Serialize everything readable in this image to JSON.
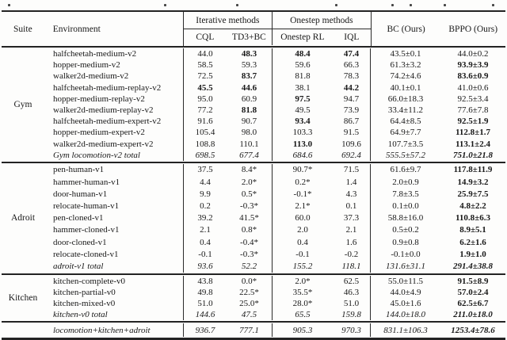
{
  "table": {
    "header": {
      "suite": "Suite",
      "environment": "Environment",
      "group_iterative": "Iterative methods",
      "group_onestep": "Onestep methods",
      "col_cql": "CQL",
      "col_td3bc": "TD3+BC",
      "col_onestep_rl": "Onestep RL",
      "col_iql": "IQL",
      "col_bc": "BC (Ours)",
      "col_bppo": "BPPO (Ours)"
    },
    "colors": {
      "text": "#181818",
      "rule": "#232323",
      "background": "#fdfdfc"
    },
    "sections": [
      {
        "suite": "Gym",
        "rows": [
          {
            "env": "halfcheetah-medium-v2",
            "cql": "44.0",
            "td3bc": "48.3",
            "onestep": "48.4",
            "iql": "47.4",
            "bc": "43.5±0.1",
            "bppo": "44.0±0.2",
            "b": [
              "td3bc",
              "onestep",
              "iql"
            ]
          },
          {
            "env": "hopper-medium-v2",
            "cql": "58.5",
            "td3bc": "59.3",
            "onestep": "59.6",
            "iql": "66.3",
            "bc": "61.3±3.2",
            "bppo": "93.9±3.9",
            "b": [
              "bppo"
            ]
          },
          {
            "env": "walker2d-medium-v2",
            "cql": "72.5",
            "td3bc": "83.7",
            "onestep": "81.8",
            "iql": "78.3",
            "bc": "74.2±4.6",
            "bppo": "83.6±0.9",
            "b": [
              "td3bc",
              "bppo"
            ]
          },
          {
            "env": "halfcheetah-medium-replay-v2",
            "cql": "45.5",
            "td3bc": "44.6",
            "onestep": "38.1",
            "iql": "44.2",
            "bc": "40.1±0.1",
            "bppo": "41.0±0.6",
            "b": [
              "cql",
              "td3bc",
              "iql"
            ]
          },
          {
            "env": "hopper-medium-replay-v2",
            "cql": "95.0",
            "td3bc": "60.9",
            "onestep": "97.5",
            "iql": "94.7",
            "bc": "66.0±18.3",
            "bppo": "92.5±3.4",
            "b": [
              "onestep"
            ]
          },
          {
            "env": "walker2d-medium-replay-v2",
            "cql": "77.2",
            "td3bc": "81.8",
            "onestep": "49.5",
            "iql": "73.9",
            "bc": "33.4±11.2",
            "bppo": "77.6±7.8",
            "b": [
              "td3bc"
            ]
          },
          {
            "env": "halfcheetah-medium-expert-v2",
            "cql": "91.6",
            "td3bc": "90.7",
            "onestep": "93.4",
            "iql": "86.7",
            "bc": "64.4±8.5",
            "bppo": "92.5±1.9",
            "b": [
              "onestep",
              "bppo"
            ]
          },
          {
            "env": "hopper-medium-expert-v2",
            "cql": "105.4",
            "td3bc": "98.0",
            "onestep": "103.3",
            "iql": "91.5",
            "bc": "64.9±7.7",
            "bppo": "112.8±1.7",
            "b": [
              "bppo"
            ]
          },
          {
            "env": "walker2d-medium-expert-v2",
            "cql": "108.8",
            "td3bc": "110.1",
            "onestep": "113.0",
            "iql": "109.6",
            "bc": "107.7±3.5",
            "bppo": "113.1±2.4",
            "b": [
              "onestep",
              "bppo"
            ]
          },
          {
            "env": "Gym locomotion-v2 total",
            "cql": "698.5",
            "td3bc": "677.4",
            "onestep": "684.6",
            "iql": "692.4",
            "bc": "555.5±57.2",
            "bppo": "751.0±21.8",
            "b": [
              "bppo"
            ],
            "italic": true
          }
        ]
      },
      {
        "suite": "Adroit",
        "rows": [
          {
            "env": "pen-human-v1",
            "cql": "37.5",
            "td3bc": "8.4*",
            "onestep": "90.7*",
            "iql": "71.5",
            "bc": "61.6±9.7",
            "bppo": "117.8±11.9",
            "b": [
              "bppo"
            ]
          },
          {
            "env": "hammer-human-v1",
            "cql": "4.4",
            "td3bc": "2.0*",
            "onestep": "0.2*",
            "iql": "1.4",
            "bc": "2.0±0.9",
            "bppo": "14.9±3.2",
            "b": [
              "bppo"
            ]
          },
          {
            "env": "door-human-v1",
            "cql": "9.9",
            "td3bc": "0.5*",
            "onestep": "-0.1*",
            "iql": "4.3",
            "bc": "7.8±3.5",
            "bppo": "25.9±7.5",
            "b": [
              "bppo"
            ]
          },
          {
            "env": "relocate-human-v1",
            "cql": "0.2",
            "td3bc": "-0.3*",
            "onestep": "2.1*",
            "iql": "0.1",
            "bc": "0.1±0.0",
            "bppo": "4.8±2.2",
            "b": [
              "bppo"
            ]
          },
          {
            "env": "pen-cloned-v1",
            "cql": "39.2",
            "td3bc": "41.5*",
            "onestep": "60.0",
            "iql": "37.3",
            "bc": "58.8±16.0",
            "bppo": "110.8±6.3",
            "b": [
              "bppo"
            ]
          },
          {
            "env": "hammer-cloned-v1",
            "cql": "2.1",
            "td3bc": "0.8*",
            "onestep": "2.0",
            "iql": "2.1",
            "bc": "0.5±0.2",
            "bppo": "8.9±5.1",
            "b": [
              "bppo"
            ]
          },
          {
            "env": "door-cloned-v1",
            "cql": "0.4",
            "td3bc": "-0.4*",
            "onestep": "0.4",
            "iql": "1.6",
            "bc": "0.9±0.8",
            "bppo": "6.2±1.6",
            "b": [
              "bppo"
            ]
          },
          {
            "env": "relocate-cloned-v1",
            "cql": "-0.1",
            "td3bc": "-0.3*",
            "onestep": "-0.1",
            "iql": "-0.2",
            "bc": "-0.1±0.0",
            "bppo": "1.9±1.0",
            "b": [
              "bppo"
            ]
          },
          {
            "env": "adroit-v1 total",
            "cql": "93.6",
            "td3bc": "52.2",
            "onestep": "155.2",
            "iql": "118.1",
            "bc": "131.6±31.1",
            "bppo": "291.4±38.8",
            "b": [
              "bppo"
            ],
            "italic": true
          }
        ]
      },
      {
        "suite": "Kitchen",
        "rows": [
          {
            "env": "kitchen-complete-v0",
            "cql": "43.8",
            "td3bc": "0.0*",
            "onestep": "2.0*",
            "iql": "62.5",
            "bc": "55.0±11.5",
            "bppo": "91.5±8.9",
            "b": [
              "bppo"
            ]
          },
          {
            "env": "kitchen-partial-v0",
            "cql": "49.8",
            "td3bc": "22.5*",
            "onestep": "35.5*",
            "iql": "46.3",
            "bc": "44.0±4.9",
            "bppo": "57.0±2.4",
            "b": [
              "bppo"
            ]
          },
          {
            "env": "kitchen-mixed-v0",
            "cql": "51.0",
            "td3bc": "25.0*",
            "onestep": "28.0*",
            "iql": "51.0",
            "bc": "45.0±1.6",
            "bppo": "62.5±6.7",
            "b": [
              "bppo"
            ]
          },
          {
            "env": "kitchen-v0 total",
            "cql": "144.6",
            "td3bc": "47.5",
            "onestep": "65.5",
            "iql": "159.8",
            "bc": "144.0±18.0",
            "bppo": "211.0±18.0",
            "b": [
              "bppo"
            ],
            "italic": true
          }
        ]
      },
      {
        "suite": "",
        "final": true,
        "rows": [
          {
            "env": "locomotion+kitchen+adroit",
            "cql": "936.7",
            "td3bc": "777.1",
            "onestep": "905.3",
            "iql": "970.3",
            "bc": "831.1±106.3",
            "bppo": "1253.4±78.6",
            "b": [
              "bppo"
            ],
            "italic": true
          }
        ]
      }
    ]
  }
}
